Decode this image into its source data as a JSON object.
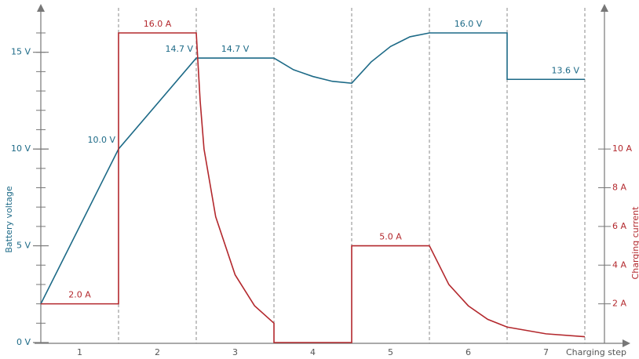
{
  "chart_data": {
    "type": "line",
    "categories": [
      "1",
      "2",
      "3",
      "4",
      "5",
      "6",
      "7"
    ],
    "xlabel": "Charging step",
    "ylabel": "Battery voltage",
    "y2label": "Charging current",
    "xlim": [
      0,
      7
    ],
    "ylim": [
      0,
      16
    ],
    "y2lim": [
      0,
      16
    ],
    "xticks": [
      1,
      2,
      3,
      4,
      5,
      6,
      7
    ],
    "yticks": [
      {
        "value": 0,
        "label": "0 V"
      },
      {
        "value": 5,
        "label": "5 V"
      },
      {
        "value": 10,
        "label": "10 V"
      },
      {
        "value": 15,
        "label": "15 V"
      }
    ],
    "y2ticks": [
      {
        "value": 2,
        "label": "2 A"
      },
      {
        "value": 4,
        "label": "4 A"
      },
      {
        "value": 6,
        "label": "6 A"
      },
      {
        "value": 8,
        "label": "8 A"
      },
      {
        "value": 10,
        "label": "10 A"
      }
    ],
    "series": [
      {
        "name": "Battery voltage",
        "color": "#1d6a87",
        "x": [
          0,
          1,
          2,
          2.5,
          3,
          3.25,
          3.5,
          3.75,
          4,
          4.25,
          4.5,
          4.75,
          5,
          5.5,
          6,
          6,
          6.75,
          7
        ],
        "values": [
          2,
          10,
          14.7,
          14.7,
          14.7,
          14.1,
          13.75,
          13.5,
          13.4,
          14.5,
          15.3,
          15.8,
          16,
          16,
          16,
          13.6,
          13.6,
          13.6
        ],
        "value_labels": [
          null,
          "10.0 V",
          "14.7 V",
          "14.7 V",
          null,
          null,
          null,
          null,
          null,
          null,
          null,
          null,
          null,
          "16.0 V",
          null,
          null,
          "13.6 V",
          null
        ]
      },
      {
        "name": "Charging current",
        "color": "#b3282d",
        "axis": "y2",
        "x": [
          0,
          0.5,
          1,
          1,
          1.5,
          2,
          2.05,
          2.1,
          2.25,
          2.5,
          2.75,
          3,
          3,
          4,
          4,
          4.5,
          5,
          5.25,
          5.5,
          5.75,
          6,
          6.5,
          7
        ],
        "values": [
          2,
          2,
          2,
          16,
          16,
          16,
          12.5,
          10,
          6.5,
          3.5,
          1.9,
          1,
          0,
          0,
          5,
          5,
          5,
          3,
          1.9,
          1.2,
          0.8,
          0.45,
          0.3
        ],
        "value_labels": [
          null,
          "2.0 A",
          null,
          null,
          "16.0 A",
          null,
          null,
          null,
          null,
          null,
          null,
          null,
          null,
          null,
          null,
          "5.0 A",
          null,
          null,
          null,
          null,
          null,
          null,
          null
        ]
      }
    ]
  }
}
